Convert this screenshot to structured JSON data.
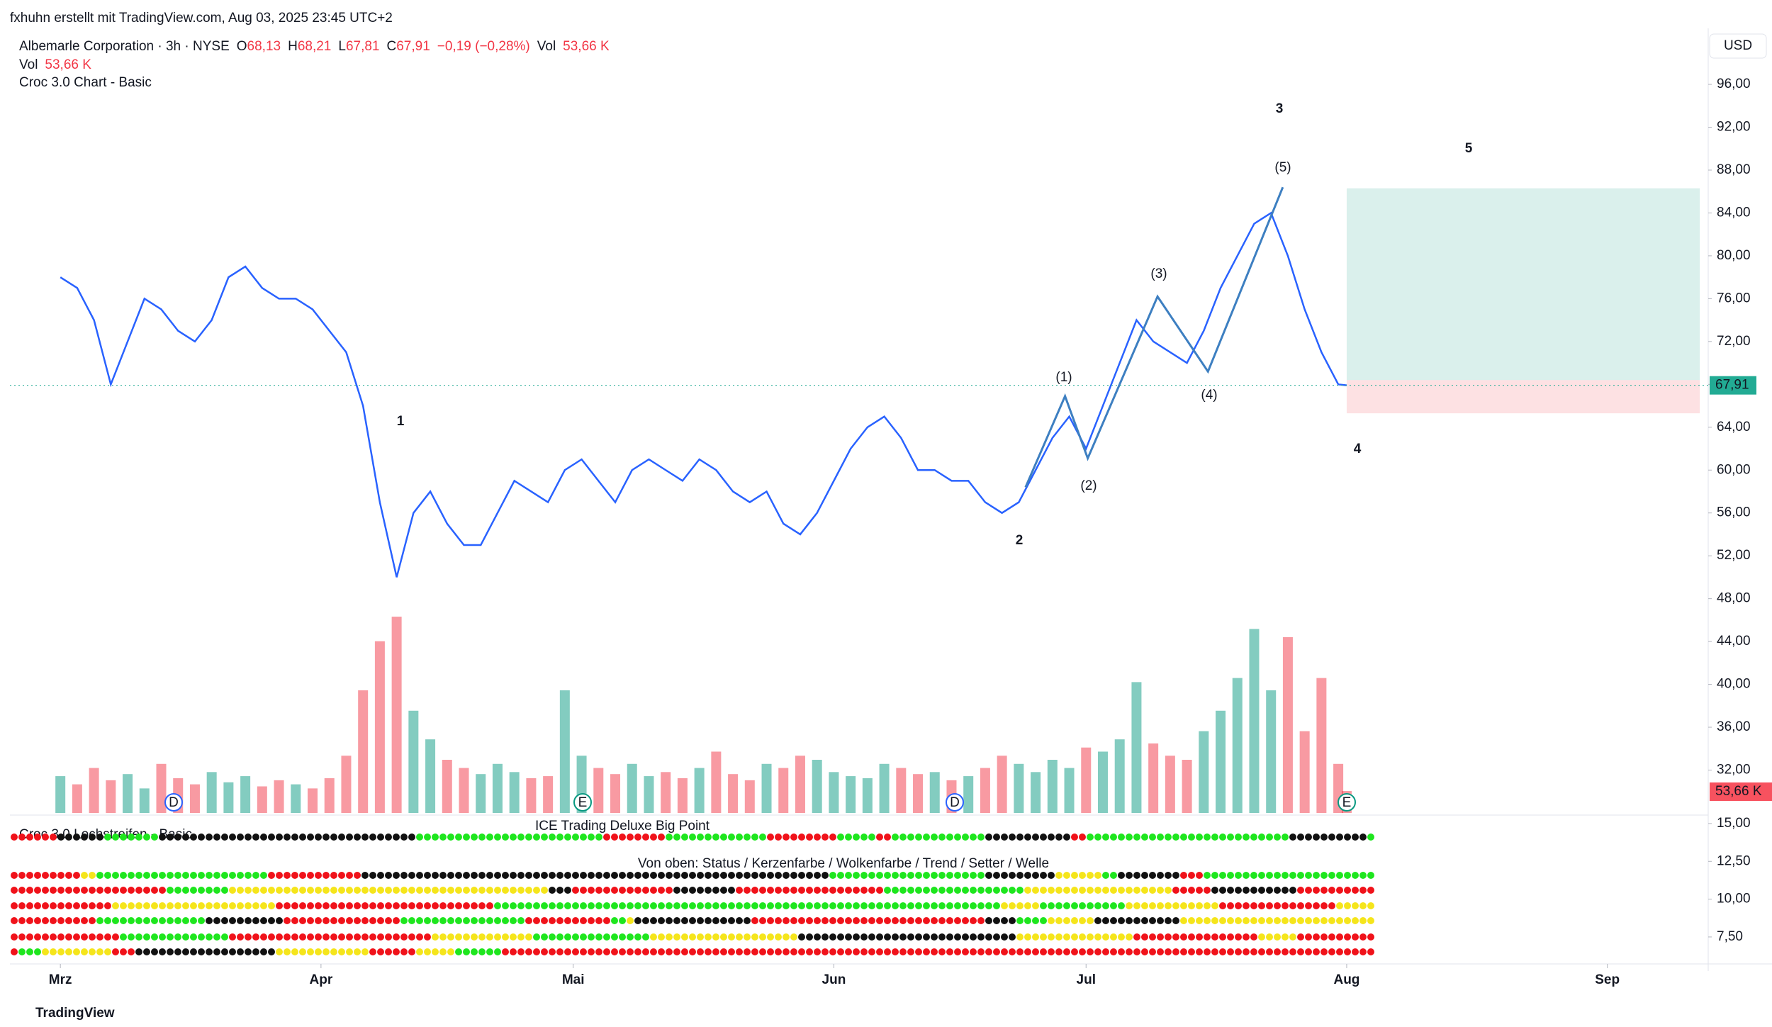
{
  "watermark": "fxhuhn erstellt mit TradingView.com, Aug 03, 2025 23:45 UTC+2",
  "legend": {
    "symbol": "Albemarle Corporation · 3h · NYSE",
    "o_label": "O",
    "open": "68,13",
    "h_label": "H",
    "high": "68,21",
    "l_label": "L",
    "low": "67,81",
    "c_label": "C",
    "close": "67,91",
    "change": "−0,19 (−0,28%)",
    "vol_label": "Vol",
    "vol": "53,66 K",
    "vol_row_label": "Vol",
    "vol_row_value": "53,66 K",
    "indicator": "Croc 3.0 Chart - Basic"
  },
  "currency": "USD",
  "footer": "TradingView",
  "chart_data": {
    "type": "line",
    "x": [
      0,
      2,
      4,
      6,
      8,
      10,
      12,
      14,
      16,
      18,
      20,
      22,
      24,
      26,
      28,
      30,
      32,
      34,
      36,
      38,
      40,
      42,
      44,
      46,
      48,
      50,
      52,
      54,
      56,
      58,
      60,
      62,
      64,
      66,
      68,
      70,
      72,
      74,
      76,
      78,
      80,
      82,
      84,
      86,
      88,
      90,
      92,
      94,
      96,
      98,
      100,
      102,
      104,
      106,
      108,
      110,
      112,
      114,
      116,
      118,
      120,
      122,
      124,
      126,
      128,
      130,
      132,
      134,
      136,
      138,
      140,
      142,
      144,
      146,
      148,
      150,
      152,
      153
    ],
    "values": [
      78,
      77,
      74,
      68,
      72,
      76,
      75,
      73,
      72,
      74,
      78,
      79,
      77,
      76,
      76,
      75,
      73,
      71,
      66,
      57,
      50,
      56,
      58,
      55,
      53,
      53,
      56,
      59,
      58,
      57,
      60,
      61,
      59,
      57,
      60,
      61,
      60,
      59,
      61,
      60,
      58,
      57,
      58,
      55,
      54,
      56,
      59,
      62,
      64,
      65,
      63,
      60,
      60,
      59,
      59,
      57,
      56,
      57,
      60,
      63,
      65,
      62,
      66,
      70,
      74,
      72,
      71,
      70,
      73,
      77,
      80,
      83,
      84,
      80,
      75,
      71,
      68,
      67.91
    ],
    "volume": [
      90,
      70,
      110,
      80,
      95,
      60,
      120,
      85,
      70,
      100,
      75,
      90,
      65,
      80,
      70,
      60,
      85,
      140,
      300,
      420,
      480,
      250,
      180,
      130,
      110,
      95,
      120,
      100,
      85,
      90,
      300,
      140,
      110,
      95,
      120,
      90,
      100,
      85,
      110,
      150,
      95,
      80,
      120,
      110,
      140,
      130,
      100,
      90,
      85,
      120,
      110,
      95,
      100,
      80,
      90,
      110,
      140,
      120,
      100,
      130,
      110,
      160,
      150,
      180,
      320,
      170,
      140,
      130,
      200,
      250,
      330,
      450,
      300,
      430,
      200,
      330,
      120,
      53.66
    ],
    "volume_lim": [
      0,
      520
    ],
    "color": "#2962ff",
    "xlim": [
      -6,
      196
    ],
    "xticks": [
      {
        "value": 0,
        "label": "Mrz"
      },
      {
        "value": 31,
        "label": "Apr"
      },
      {
        "value": 61,
        "label": "Mai"
      },
      {
        "value": 92,
        "label": "Jun"
      },
      {
        "value": 122,
        "label": "Jul"
      },
      {
        "value": 153,
        "label": "Aug"
      },
      {
        "value": 184,
        "label": "Sep"
      }
    ],
    "ylim": [
      27.8,
      100.7
    ],
    "yticks": [
      {
        "value": 32,
        "label": "32,00"
      },
      {
        "value": 36,
        "label": "36,00"
      },
      {
        "value": 40,
        "label": "40,00"
      },
      {
        "value": 44,
        "label": "44,00"
      },
      {
        "value": 48,
        "label": "48,00"
      },
      {
        "value": 52,
        "label": "52,00"
      },
      {
        "value": 56,
        "label": "56,00"
      },
      {
        "value": 60,
        "label": "60,00"
      },
      {
        "value": 64,
        "label": "64,00"
      },
      {
        "value": 68,
        "label": "68,00"
      },
      {
        "value": 72,
        "label": "72,00"
      },
      {
        "value": 76,
        "label": "76,00"
      },
      {
        "value": 80,
        "label": "80,00"
      },
      {
        "value": 84,
        "label": "84,00"
      },
      {
        "value": 88,
        "label": "88,00"
      },
      {
        "value": 92,
        "label": "92,00"
      },
      {
        "value": 96,
        "label": "96,00"
      }
    ],
    "last_price": {
      "value": 67.91,
      "label": "67,91"
    },
    "volume_label": "53,66 K",
    "wave_path": {
      "x": [
        114.8,
        119.5,
        122.2,
        130.5,
        136.5,
        145.4
      ],
      "values": [
        58.4,
        66.9,
        61.1,
        76.2,
        69.2,
        86.4
      ]
    },
    "wave_labels": [
      "1",
      "2",
      "3",
      "4",
      "5",
      "(1)",
      "(2)",
      "(3)",
      "(4)",
      "(5)"
    ],
    "position": {
      "x": [
        153,
        195
      ],
      "target": 86.3,
      "entry": 68.4,
      "stop": 65.3
    },
    "events": [
      "D",
      "E",
      "D",
      "E"
    ]
  },
  "lower_pane": {
    "title": "ICE Trading Deluxe Big Point",
    "subtitle": "Croc 3.0 Lochstreifen - Basic",
    "legend": "Von oben: Status / Kerzenfarbe / Wolkenfarbe / Trend / Setter / Welle",
    "ylim": [
      5.81,
      15.56
    ],
    "yticks": [
      {
        "value": 7.5,
        "label": "7,50"
      },
      {
        "value": 10,
        "label": "10,00"
      },
      {
        "value": 12.5,
        "label": "12,50"
      },
      {
        "value": 15,
        "label": "15,00"
      }
    ]
  }
}
